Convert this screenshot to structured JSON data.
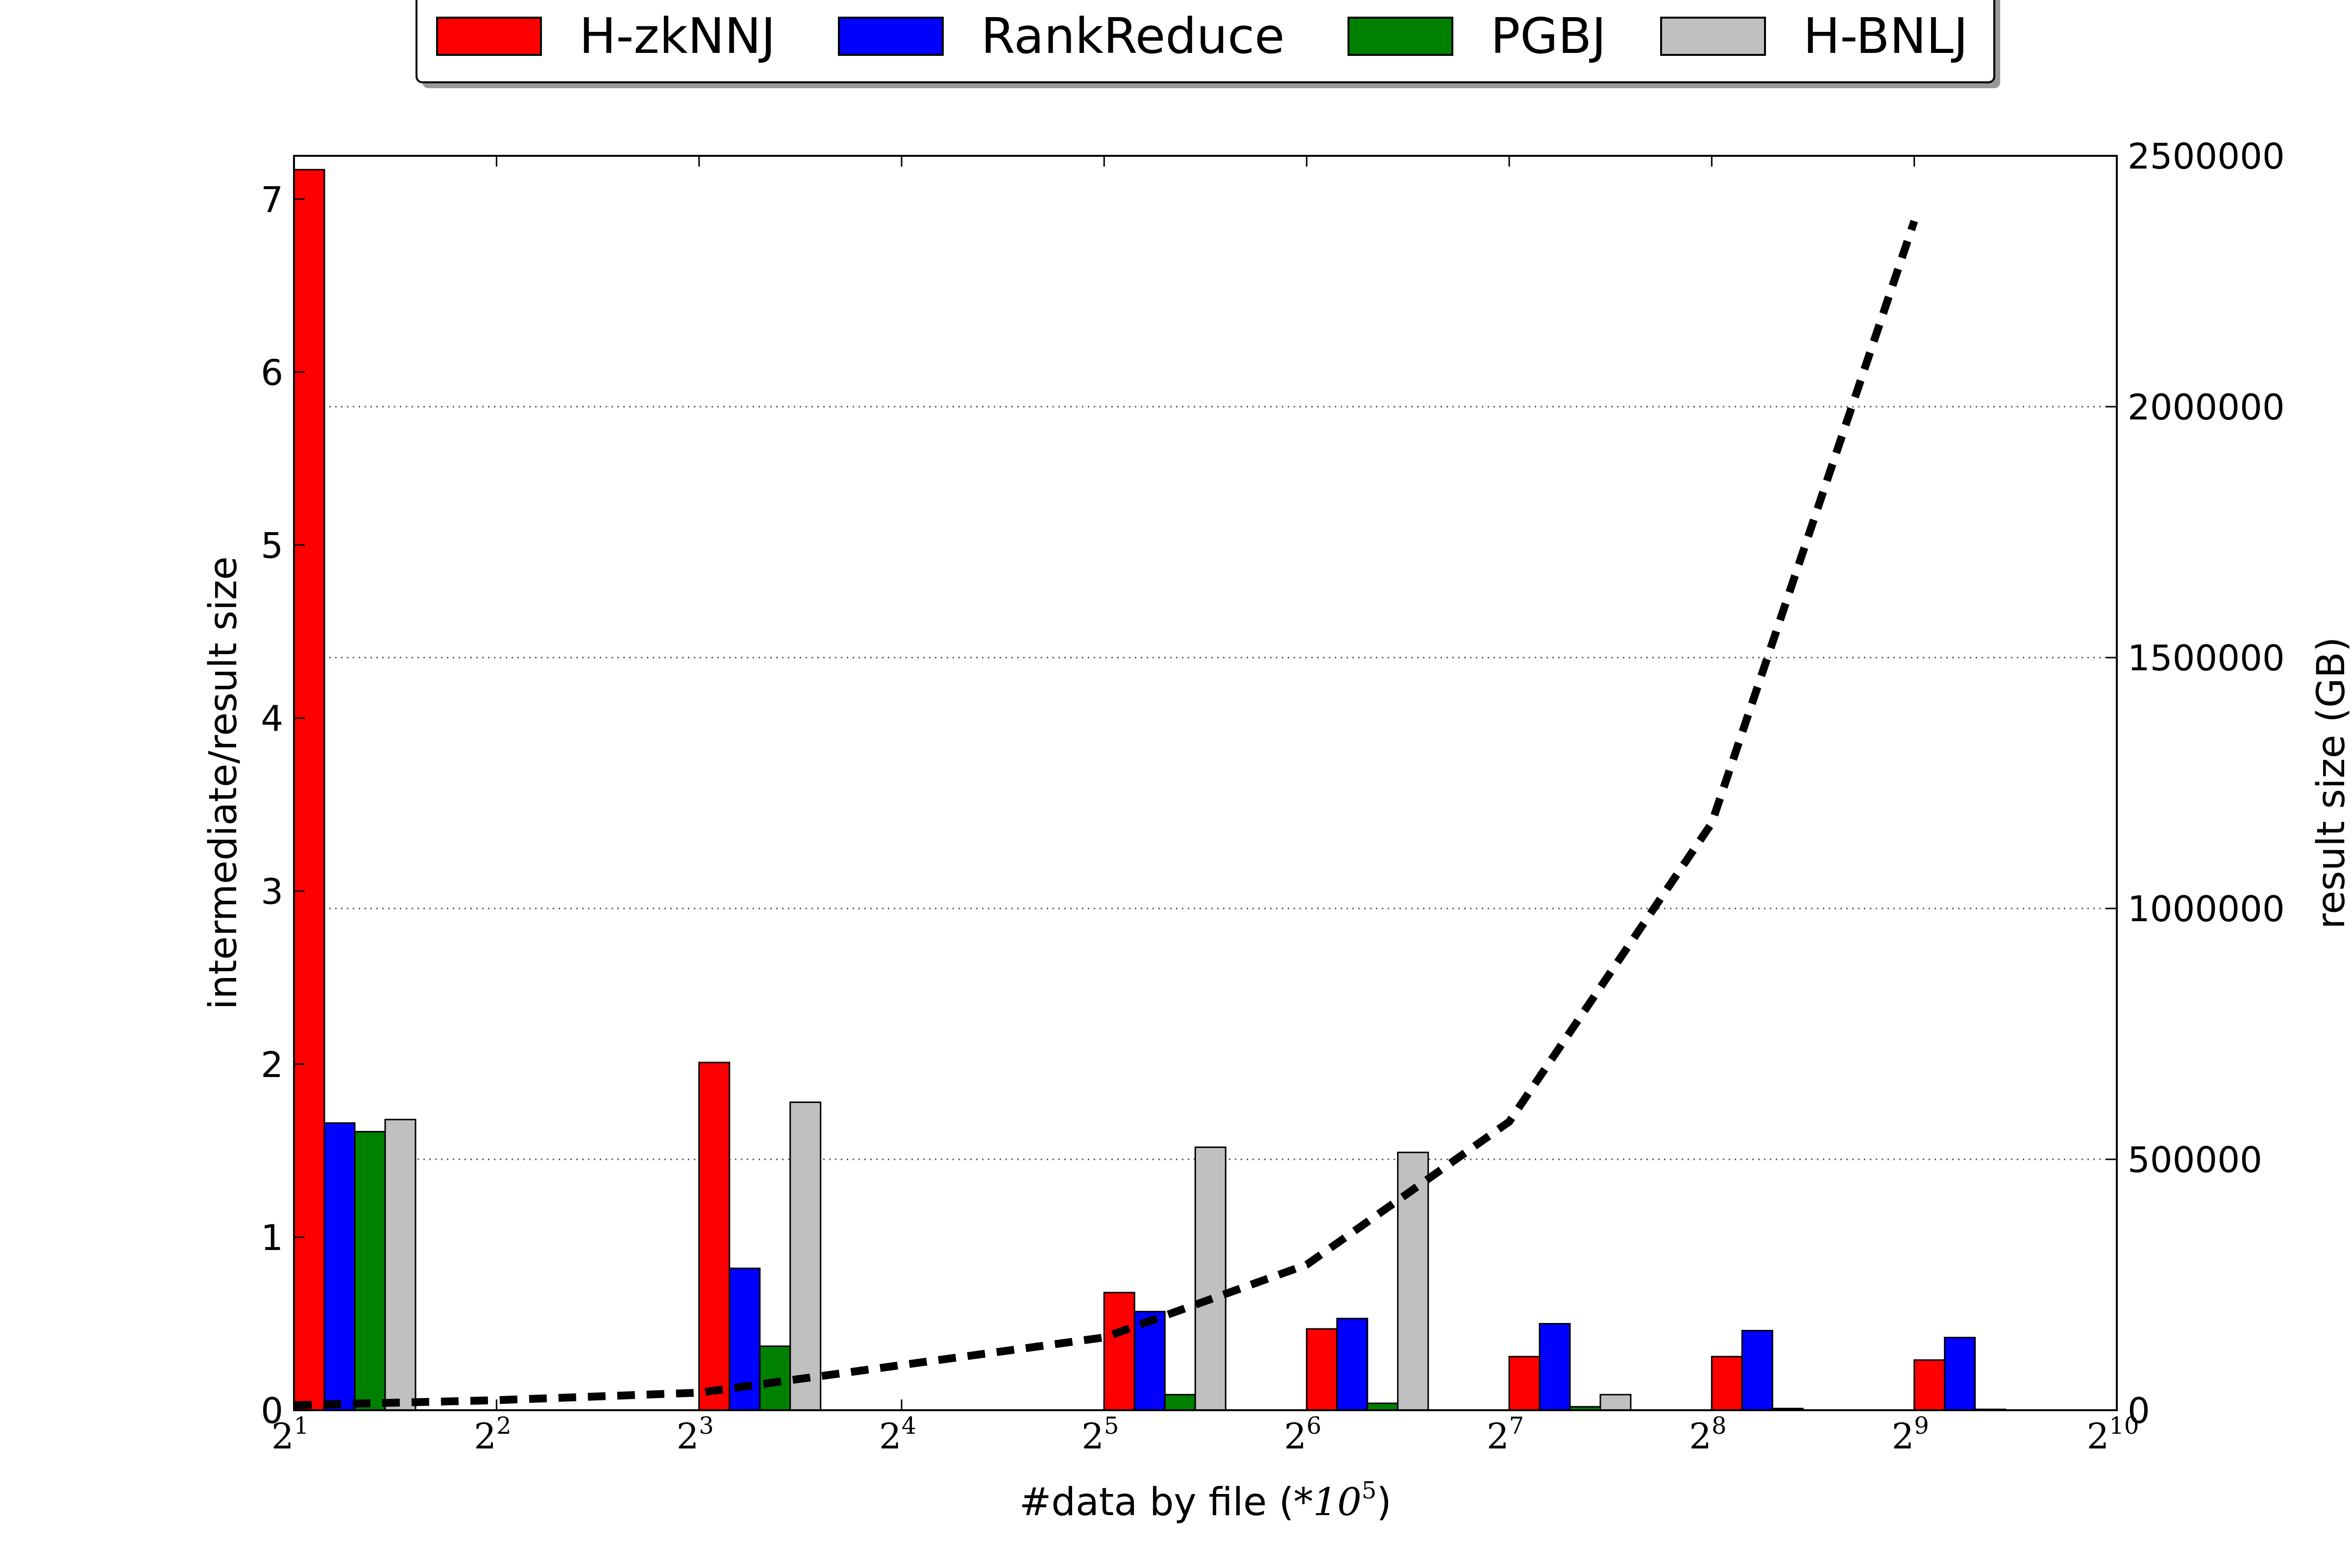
{
  "chart_data": {
    "type": "bar",
    "x_axis": {
      "label": "#data by file (",
      "label_math": "*10",
      "label_exp": "5",
      "label_close": ")",
      "scale": "log2",
      "range_exp": [
        1,
        10
      ],
      "ticks": [
        {
          "base": "2",
          "exp": "1"
        },
        {
          "base": "2",
          "exp": "2"
        },
        {
          "base": "2",
          "exp": "3"
        },
        {
          "base": "2",
          "exp": "4"
        },
        {
          "base": "2",
          "exp": "5"
        },
        {
          "base": "2",
          "exp": "6"
        },
        {
          "base": "2",
          "exp": "7"
        },
        {
          "base": "2",
          "exp": "8"
        },
        {
          "base": "2",
          "exp": "9"
        },
        {
          "base": "2",
          "exp": "10"
        }
      ]
    },
    "y_left": {
      "label": "intermediate/result size",
      "ylim": [
        0,
        7.25
      ],
      "ticks": [
        "0",
        "1",
        "2",
        "3",
        "4",
        "5",
        "6",
        "7"
      ]
    },
    "y_right": {
      "label": "result size (GB)",
      "ylim": [
        0,
        2500000
      ],
      "ticks": [
        "0",
        "500000",
        "1000000",
        "1500000",
        "2000000",
        "2500000"
      ]
    },
    "grid": "horizontal dotted at right-axis ticks",
    "legend_position": "top-center",
    "groups_x_exp": [
      1,
      3,
      5,
      6,
      7,
      8,
      9
    ],
    "series": [
      {
        "name": "H-zkNNJ",
        "color": "#ff0000",
        "values": [
          7.17,
          2.01,
          0.68,
          0.47,
          0.31,
          0.31,
          0.29
        ]
      },
      {
        "name": "RankReduce",
        "color": "#0000ff",
        "values": [
          1.66,
          0.82,
          0.57,
          0.53,
          0.5,
          0.46,
          0.42
        ]
      },
      {
        "name": "PGBJ",
        "color": "#008000",
        "values": [
          1.61,
          0.37,
          0.09,
          0.04,
          0.02,
          0.01,
          0.005
        ]
      },
      {
        "name": "H-BNLJ",
        "color": "#c0c0c0",
        "values": [
          1.68,
          1.78,
          1.52,
          1.49,
          0.09,
          0,
          0
        ]
      }
    ],
    "line": {
      "style": "black dashed",
      "axis": "right",
      "points": [
        {
          "x_exp": 1,
          "y": 10000
        },
        {
          "x_exp": 2,
          "y": 20000
        },
        {
          "x_exp": 3,
          "y": 35000
        },
        {
          "x_exp": 4,
          "y": 90000
        },
        {
          "x_exp": 5,
          "y": 145000
        },
        {
          "x_exp": 6,
          "y": 290000
        },
        {
          "x_exp": 7,
          "y": 575000
        },
        {
          "x_exp": 8,
          "y": 1170000
        },
        {
          "x_exp": 9,
          "y": 2370000
        }
      ]
    }
  }
}
